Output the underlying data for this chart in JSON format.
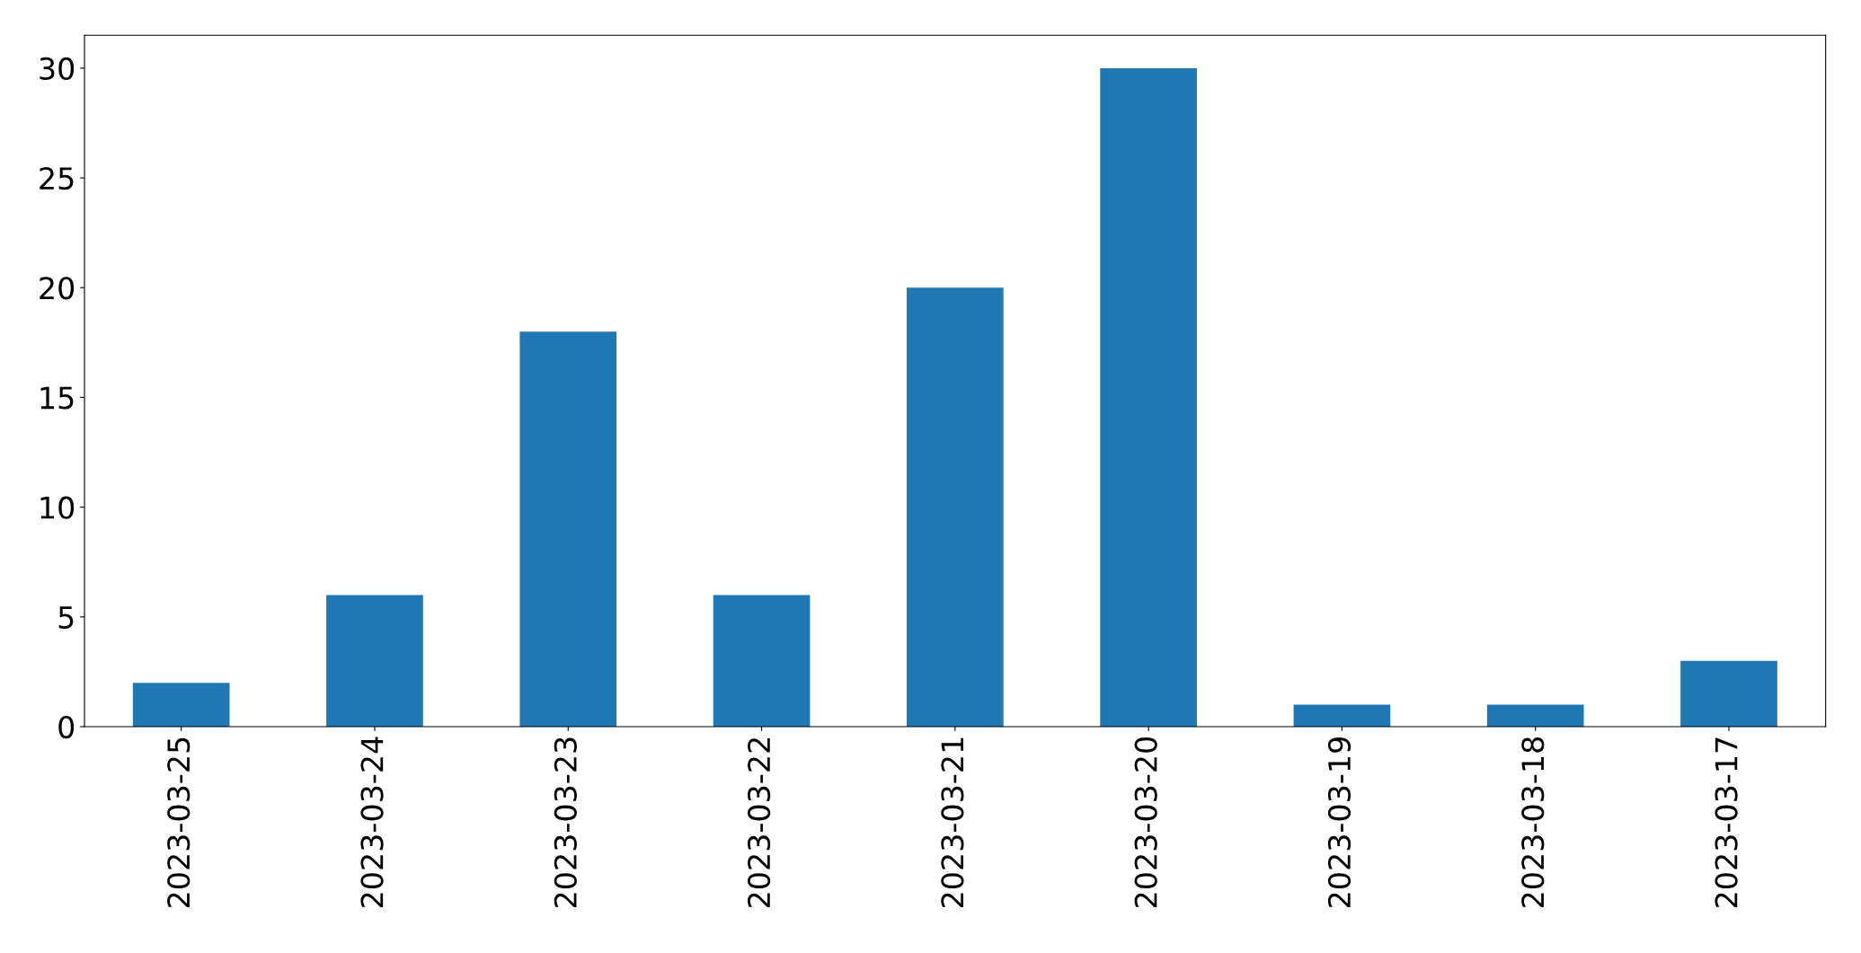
{
  "chart_data": {
    "type": "bar",
    "categories": [
      "2023-03-25",
      "2023-03-24",
      "2023-03-23",
      "2023-03-22",
      "2023-03-21",
      "2023-03-20",
      "2023-03-19",
      "2023-03-18",
      "2023-03-17"
    ],
    "values": [
      2,
      6,
      18,
      6,
      20,
      30,
      1,
      1,
      3
    ],
    "color": "#1f77b4",
    "ylim": [
      0,
      31.5
    ],
    "yticks": [
      0,
      5,
      10,
      15,
      20,
      25,
      30
    ]
  }
}
